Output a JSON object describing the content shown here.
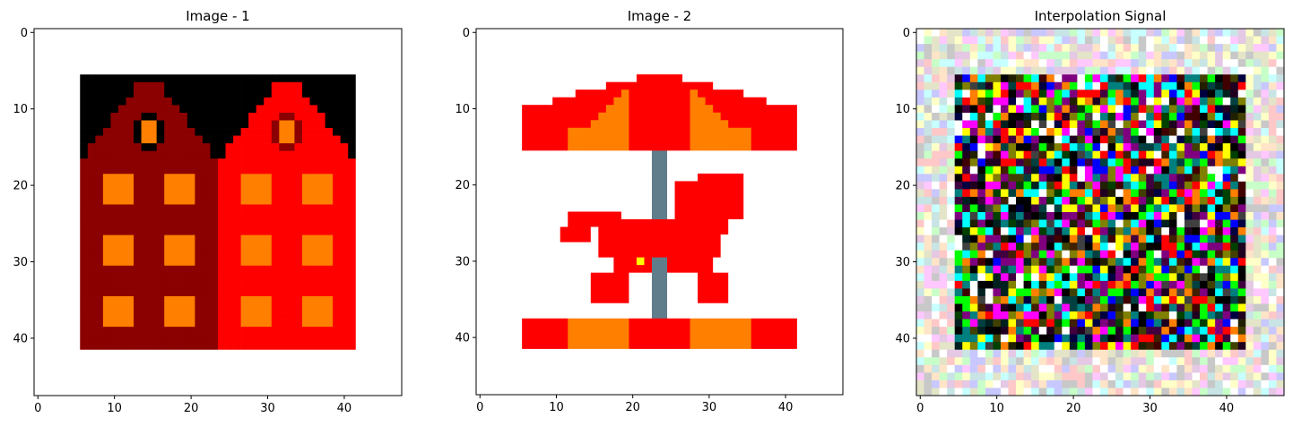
{
  "chart_data": [
    {
      "type": "heatmap",
      "title": "Image - 1",
      "grid_size": [
        48,
        48
      ],
      "xlim": [
        -0.5,
        47.5
      ],
      "ylim": [
        47.5,
        -0.5
      ],
      "xticks": [
        0,
        10,
        20,
        30,
        40
      ],
      "yticks": [
        0,
        10,
        20,
        30,
        40
      ],
      "grid": false,
      "image": "pixel-art row of two houses: dark-red house and red house, black sky band, orange windows and round attic windows",
      "colors": {
        "background": "#ffffff",
        "sky": "#000000",
        "house_left": "#8b0000",
        "house_right": "#ff0000",
        "window": "#ff7f00"
      }
    },
    {
      "type": "heatmap",
      "title": "Image - 2",
      "grid_size": [
        48,
        48
      ],
      "xlim": [
        -0.5,
        47.5
      ],
      "ylim": [
        47.5,
        -0.5
      ],
      "xticks": [
        0,
        10,
        20,
        30,
        40
      ],
      "yticks": [
        0,
        10,
        20,
        30,
        40
      ],
      "grid": false,
      "image": "pixel-art carousel: striped red/orange canopy, grey pole, red horse, striped base",
      "colors": {
        "background": "#ffffff",
        "red": "#ff0000",
        "orange": "#ff7f00",
        "pole": "#607d8b",
        "accent": "#ffff00"
      }
    },
    {
      "type": "heatmap",
      "title": "Interpolation Signal",
      "grid_size": [
        48,
        48
      ],
      "xlim": [
        -0.5,
        47.5
      ],
      "ylim": [
        47.5,
        -0.5
      ],
      "xticks": [
        0,
        10,
        20,
        30,
        40
      ],
      "yticks": [
        0,
        10,
        20,
        30,
        40
      ],
      "grid": false,
      "image": "random-colored pixel noise; pale pastel border, dark saturated noise in the central region",
      "colors": {
        "palette": [
          "#ff0000",
          "#00ff00",
          "#0000ff",
          "#ffff00",
          "#ff00ff",
          "#00ffff",
          "#000000",
          "#ffffff",
          "#7f7f00",
          "#7f007f",
          "#007f7f",
          "#ff7f00"
        ]
      }
    }
  ]
}
